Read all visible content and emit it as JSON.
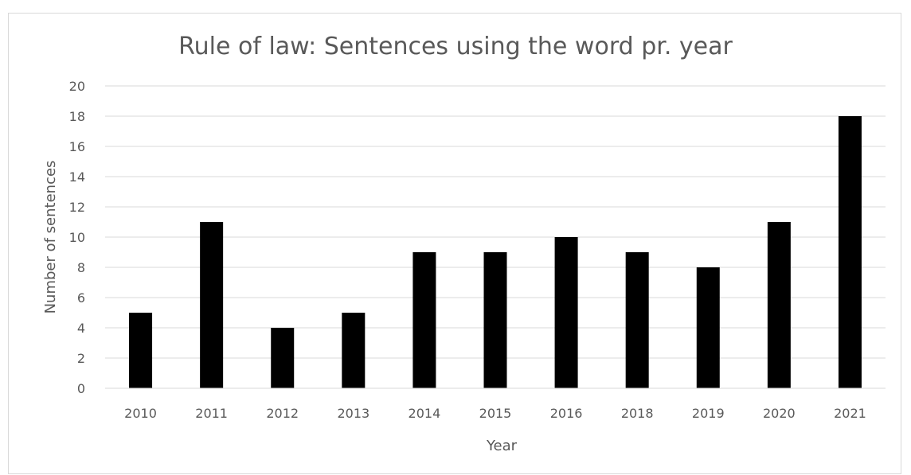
{
  "chart_data": {
    "type": "bar",
    "title": "Rule of law: Sentences using the word pr. year",
    "xlabel": "Year",
    "ylabel": "Number of sentences",
    "categories": [
      "2010",
      "2011",
      "2012",
      "2013",
      "2014",
      "2015",
      "2016",
      "2018",
      "2019",
      "2020",
      "2021"
    ],
    "values": [
      5,
      11,
      4,
      5,
      9,
      9,
      10,
      9,
      8,
      11,
      18
    ],
    "ylim": [
      0,
      20
    ],
    "yticks": [
      0,
      2,
      4,
      6,
      8,
      10,
      12,
      14,
      16,
      18,
      20
    ],
    "grid": true,
    "legend": false,
    "bar_color": "#000000",
    "grid_color": "#d9d9d9",
    "text_color": "#595959"
  }
}
